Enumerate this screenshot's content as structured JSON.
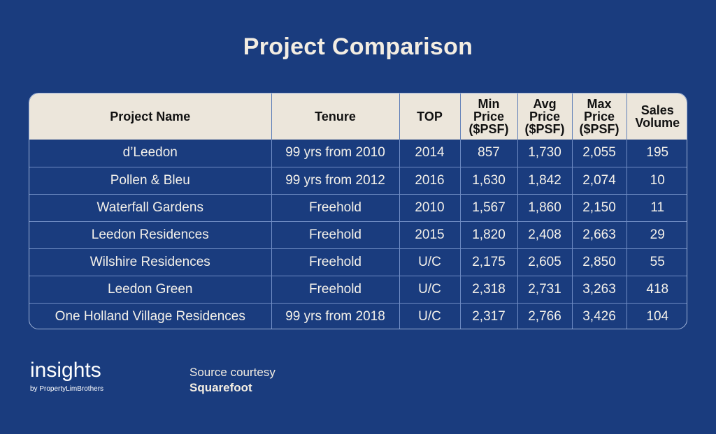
{
  "title": "Project Comparison",
  "table": {
    "headers": [
      "Project Name",
      "Tenure",
      "TOP",
      "Min Price ($PSF)",
      "Avg Price ($PSF)",
      "Max Price ($PSF)",
      "Sales Volume"
    ],
    "rows": [
      [
        "d’Leedon",
        "99 yrs from 2010",
        "2014",
        "857",
        "1,730",
        "2,055",
        "195"
      ],
      [
        "Pollen & Bleu",
        "99 yrs from 2012",
        "2016",
        "1,630",
        "1,842",
        "2,074",
        "10"
      ],
      [
        "Waterfall Gardens",
        "Freehold",
        "2010",
        "1,567",
        "1,860",
        "2,150",
        "11"
      ],
      [
        "Leedon Residences",
        "Freehold",
        "2015",
        "1,820",
        "2,408",
        "2,663",
        "29"
      ],
      [
        "Wilshire Residences",
        "Freehold",
        "U/C",
        "2,175",
        "2,605",
        "2,850",
        "55"
      ],
      [
        "Leedon Green",
        "Freehold",
        "U/C",
        "2,318",
        "2,731",
        "3,263",
        "418"
      ],
      [
        "One Holland Village Residences",
        "99 yrs from 2018",
        "U/C",
        "2,317",
        "2,766",
        "3,426",
        "104"
      ]
    ]
  },
  "brand": {
    "logo_word": "insights",
    "logo_by": "by PropertyLimBrothers"
  },
  "source": {
    "label": "Source courtesy",
    "name": "Squarefoot"
  },
  "colors": {
    "background": "#1a3c7e",
    "header_bg": "#ece6db",
    "title_text": "#f3ede2"
  }
}
